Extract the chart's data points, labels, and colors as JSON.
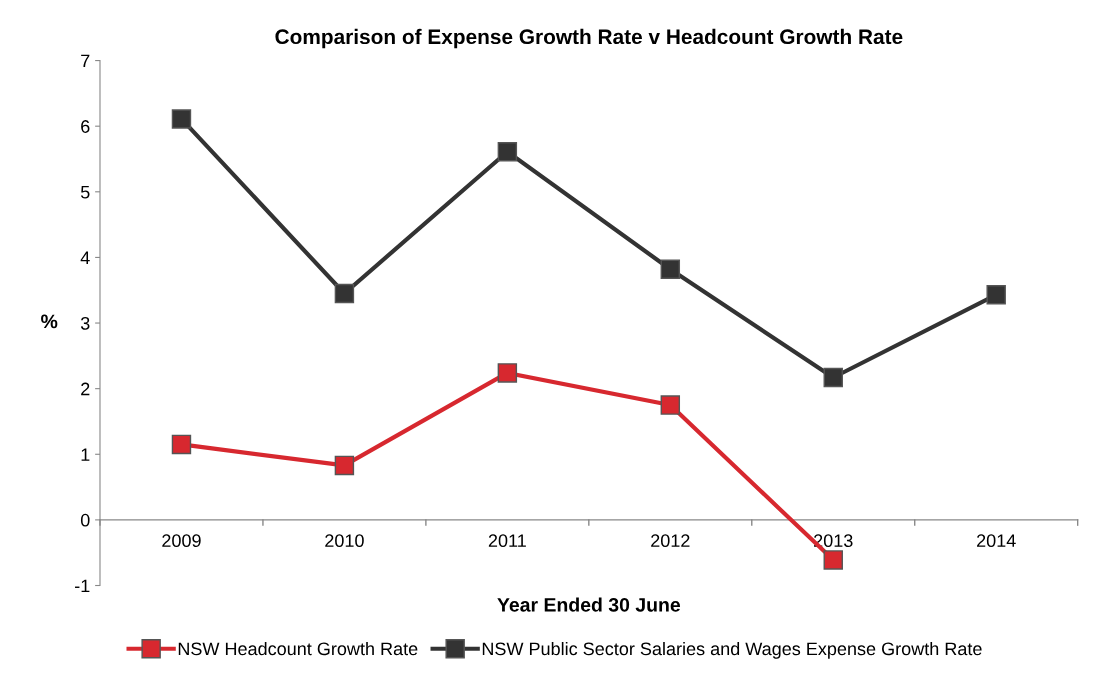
{
  "chart_data": {
    "type": "line",
    "title": "Comparison of Expense Growth Rate v Headcount Growth Rate",
    "xlabel": "Year Ended 30 June",
    "ylabel": "%",
    "categories": [
      "2009",
      "2010",
      "2011",
      "2012",
      "2013",
      "2014"
    ],
    "series": [
      {
        "name": "NSW Headcount Growth Rate",
        "color": "#d7282f",
        "values": [
          1.15,
          0.83,
          2.24,
          1.75,
          -0.61,
          null
        ]
      },
      {
        "name": "NSW Public Sector Salaries and Wages Expense Growth Rate",
        "color": "#333333",
        "values": [
          6.11,
          3.45,
          5.61,
          3.82,
          2.17,
          3.43
        ]
      }
    ],
    "ylim": [
      -1,
      7
    ],
    "yticks": [
      -1,
      0,
      1,
      2,
      3,
      4,
      5,
      6,
      7
    ],
    "grid": false,
    "legend": "bottom",
    "marker": "square",
    "line_style": "solid"
  }
}
